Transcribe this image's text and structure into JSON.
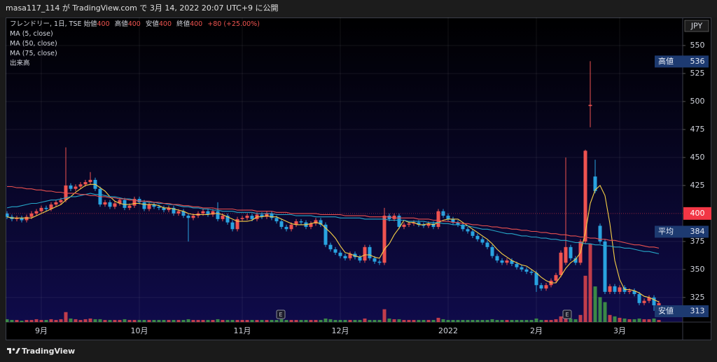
{
  "header": {
    "text": "masa117_114 が TradingView.com で 3月 14, 2022 20:07 UTC+9 に公開"
  },
  "chart_data": {
    "type": "candlestick",
    "legend": {
      "symbol": "フレンドリー, 1日, TSE",
      "ohlc_labels": [
        "始値",
        "高値",
        "安値",
        "終値"
      ],
      "ohlc_values": [
        400,
        400,
        400,
        400
      ],
      "change": "+80 (+25.00%)"
    },
    "volume_name": "出来高",
    "currency": "JPY",
    "categories": [
      null,
      null,
      null,
      null,
      null,
      null,
      null,
      "9月",
      null,
      null,
      null,
      null,
      null,
      null,
      null,
      null,
      null,
      null,
      null,
      null,
      null,
      null,
      null,
      null,
      null,
      null,
      null,
      "10月",
      null,
      null,
      null,
      null,
      null,
      null,
      null,
      null,
      null,
      null,
      null,
      null,
      null,
      null,
      null,
      null,
      null,
      null,
      null,
      null,
      "11月",
      null,
      null,
      null,
      null,
      null,
      null,
      null,
      null,
      null,
      null,
      null,
      null,
      null,
      null,
      null,
      null,
      null,
      null,
      null,
      "12月",
      null,
      null,
      null,
      null,
      null,
      null,
      null,
      null,
      null,
      null,
      null,
      null,
      null,
      null,
      null,
      null,
      null,
      null,
      null,
      null,
      null,
      "2022",
      null,
      null,
      null,
      null,
      null,
      null,
      null,
      null,
      null,
      null,
      null,
      null,
      null,
      null,
      null,
      null,
      null,
      "2月",
      null,
      null,
      null,
      null,
      null,
      null,
      null,
      null,
      null,
      null,
      null,
      null,
      null,
      null,
      null,
      null,
      "3月",
      null,
      null,
      null,
      null,
      null,
      null,
      null,
      null
    ],
    "open": [
      400,
      397,
      395,
      396,
      394,
      397,
      400,
      402,
      405,
      404,
      408,
      410,
      412,
      425,
      422,
      424,
      426,
      428,
      430,
      422,
      408,
      410,
      406,
      409,
      412,
      405,
      407,
      413,
      410,
      404,
      408,
      406,
      405,
      403,
      405,
      400,
      402,
      398,
      396,
      398,
      400,
      402,
      399,
      402,
      395,
      398,
      392,
      386,
      395,
      396,
      398,
      395,
      399,
      397,
      400,
      396,
      393,
      388,
      386,
      390,
      393,
      392,
      388,
      391,
      394,
      390,
      372,
      368,
      365,
      362,
      360,
      364,
      361,
      358,
      370,
      360,
      357,
      356,
      398,
      395,
      398,
      388,
      390,
      391,
      392,
      390,
      389,
      391,
      388,
      402,
      398,
      395,
      392,
      390,
      386,
      384,
      380,
      377,
      374,
      370,
      362,
      358,
      356,
      358,
      355,
      352,
      350,
      348,
      347,
      336,
      333,
      336,
      340,
      345,
      356,
      370,
      360,
      356,
      375,
      496,
      433,
      389,
      375,
      330,
      335,
      330,
      334,
      330,
      331,
      328,
      320,
      322,
      325,
      318
    ],
    "high": [
      402,
      399,
      398,
      398,
      399,
      402,
      404,
      407,
      407,
      410,
      412,
      414,
      459,
      427,
      426,
      428,
      430,
      437,
      432,
      424,
      412,
      412,
      411,
      414,
      414,
      409,
      415,
      415,
      412,
      410,
      410,
      408,
      407,
      407,
      407,
      404,
      404,
      400,
      400,
      402,
      404,
      404,
      404,
      410,
      400,
      400,
      394,
      397,
      398,
      400,
      400,
      401,
      401,
      402,
      402,
      398,
      395,
      390,
      392,
      395,
      395,
      394,
      393,
      396,
      396,
      392,
      374,
      370,
      367,
      364,
      366,
      366,
      363,
      372,
      372,
      362,
      359,
      405,
      400,
      400,
      400,
      392,
      393,
      394,
      394,
      392,
      393,
      393,
      404,
      404,
      400,
      397,
      394,
      392,
      388,
      386,
      382,
      379,
      376,
      372,
      364,
      360,
      360,
      360,
      357,
      354,
      352,
      350,
      349,
      338,
      338,
      342,
      347,
      367,
      450,
      372,
      362,
      377,
      457,
      536,
      448,
      391,
      377,
      337,
      337,
      336,
      336,
      333,
      333,
      330,
      324,
      327,
      327,
      322
    ],
    "low": [
      395,
      393,
      393,
      392,
      392,
      395,
      398,
      400,
      402,
      402,
      406,
      408,
      410,
      420,
      420,
      422,
      424,
      426,
      420,
      406,
      406,
      404,
      404,
      407,
      403,
      403,
      405,
      408,
      402,
      402,
      404,
      403,
      401,
      401,
      398,
      398,
      396,
      375,
      394,
      396,
      398,
      397,
      397,
      393,
      393,
      390,
      384,
      384,
      393,
      394,
      393,
      393,
      395,
      395,
      394,
      391,
      386,
      384,
      384,
      388,
      390,
      386,
      386,
      389,
      388,
      370,
      366,
      363,
      360,
      358,
      358,
      359,
      356,
      356,
      358,
      355,
      354,
      354,
      393,
      393,
      386,
      386,
      388,
      389,
      388,
      387,
      387,
      386,
      386,
      396,
      393,
      390,
      388,
      384,
      382,
      378,
      375,
      372,
      368,
      360,
      356,
      354,
      354,
      353,
      350,
      348,
      346,
      345,
      330,
      331,
      331,
      334,
      338,
      343,
      354,
      358,
      354,
      354,
      373,
      477,
      418,
      373,
      328,
      328,
      328,
      328,
      328,
      328,
      326,
      318,
      318,
      320,
      313,
      316
    ],
    "close": [
      397,
      395,
      396,
      394,
      397,
      400,
      402,
      405,
      404,
      408,
      410,
      412,
      425,
      422,
      424,
      426,
      428,
      430,
      422,
      408,
      410,
      406,
      409,
      412,
      405,
      407,
      413,
      410,
      404,
      408,
      406,
      405,
      403,
      405,
      400,
      402,
      398,
      396,
      398,
      400,
      402,
      399,
      402,
      395,
      398,
      392,
      386,
      395,
      396,
      398,
      395,
      399,
      397,
      400,
      396,
      393,
      388,
      386,
      390,
      393,
      392,
      388,
      391,
      394,
      390,
      372,
      368,
      365,
      362,
      360,
      364,
      361,
      358,
      370,
      360,
      357,
      356,
      398,
      395,
      398,
      388,
      390,
      391,
      392,
      390,
      389,
      391,
      388,
      402,
      398,
      395,
      392,
      390,
      386,
      384,
      380,
      377,
      374,
      370,
      362,
      358,
      356,
      358,
      355,
      352,
      350,
      348,
      347,
      336,
      333,
      336,
      340,
      345,
      365,
      370,
      360,
      356,
      375,
      456,
      497,
      420,
      375,
      330,
      335,
      330,
      334,
      330,
      331,
      328,
      320,
      322,
      325,
      318,
      320
    ],
    "volume": [
      4,
      3,
      3,
      2,
      3,
      3,
      4,
      3,
      3,
      4,
      3,
      4,
      14,
      5,
      4,
      3,
      4,
      5,
      4,
      4,
      3,
      3,
      3,
      3,
      4,
      3,
      3,
      3,
      3,
      3,
      3,
      3,
      3,
      3,
      3,
      3,
      3,
      4,
      3,
      3,
      3,
      3,
      3,
      4,
      3,
      3,
      3,
      3,
      3,
      3,
      3,
      3,
      3,
      3,
      3,
      3,
      4,
      3,
      3,
      3,
      3,
      3,
      3,
      3,
      3,
      5,
      4,
      3,
      3,
      3,
      3,
      3,
      3,
      5,
      3,
      3,
      3,
      18,
      5,
      4,
      4,
      3,
      3,
      3,
      3,
      3,
      3,
      3,
      6,
      4,
      3,
      3,
      3,
      3,
      3,
      3,
      3,
      3,
      3,
      4,
      3,
      3,
      3,
      3,
      3,
      3,
      3,
      3,
      5,
      3,
      3,
      3,
      4,
      8,
      10,
      5,
      4,
      10,
      65,
      110,
      50,
      35,
      28,
      10,
      8,
      6,
      5,
      4,
      4,
      5,
      4,
      4,
      5,
      3
    ],
    "up_color": "#ef5350",
    "down_color": "#29a3e0",
    "volume_up_color": "#e0464c",
    "volume_down_color": "#43a047",
    "series": [
      {
        "name": "MA (5, close)",
        "color": "#f7d046",
        "values": [
          397,
          396,
          396,
          396,
          396,
          396,
          398,
          400,
          402,
          404,
          406,
          408,
          412,
          415,
          419,
          422,
          425,
          426,
          426,
          423,
          420,
          415,
          411,
          409,
          408,
          408,
          409,
          409,
          408,
          408,
          408,
          407,
          405,
          405,
          404,
          403,
          402,
          400,
          399,
          399,
          399,
          399,
          400,
          400,
          399,
          397,
          395,
          393,
          393,
          393,
          394,
          397,
          397,
          398,
          397,
          397,
          395,
          393,
          391,
          390,
          390,
          390,
          391,
          392,
          391,
          387,
          383,
          378,
          371,
          365,
          364,
          362,
          361,
          363,
          363,
          361,
          360,
          368,
          373,
          381,
          387,
          394,
          392,
          392,
          390,
          390,
          391,
          390,
          392,
          394,
          395,
          395,
          395,
          392,
          389,
          386,
          383,
          380,
          377,
          373,
          368,
          364,
          361,
          358,
          356,
          354,
          353,
          350,
          347,
          343,
          340,
          338,
          338,
          344,
          351,
          356,
          359,
          365,
          383,
          409,
          421,
          425,
          416,
          391,
          358,
          341,
          332,
          332,
          331,
          329,
          326,
          325,
          323,
          321
        ]
      },
      {
        "name": "MA (50, close)",
        "color": "#26a7c9",
        "values": [
          405,
          406,
          406,
          407,
          408,
          409,
          409,
          410,
          411,
          412,
          412,
          413,
          414,
          415,
          415,
          416,
          417,
          418,
          417,
          417,
          416,
          415,
          415,
          414,
          413,
          413,
          412,
          411,
          411,
          410,
          410,
          409,
          409,
          408,
          408,
          407,
          406,
          406,
          405,
          405,
          404,
          404,
          403,
          403,
          402,
          402,
          402,
          401,
          401,
          401,
          401,
          400,
          400,
          400,
          400,
          399,
          399,
          399,
          399,
          398,
          398,
          398,
          398,
          397,
          397,
          397,
          397,
          397,
          396,
          396,
          396,
          396,
          396,
          395,
          395,
          395,
          395,
          395,
          394,
          394,
          394,
          394,
          393,
          393,
          393,
          393,
          392,
          392,
          392,
          391,
          391,
          390,
          390,
          389,
          389,
          388,
          387,
          386,
          386,
          385,
          384,
          383,
          382,
          382,
          381,
          380,
          380,
          379,
          379,
          378,
          378,
          377,
          377,
          376,
          376,
          375,
          374,
          374,
          373,
          373,
          372,
          372,
          371,
          371,
          370,
          370,
          369,
          369,
          368,
          367,
          366,
          366,
          365,
          364
        ]
      },
      {
        "name": "MA (75, close)",
        "color": "#e8504f",
        "values": [
          424,
          424,
          423,
          423,
          422,
          422,
          421,
          421,
          420,
          420,
          419,
          419,
          418,
          418,
          418,
          417,
          417,
          416,
          416,
          415,
          415,
          414,
          414,
          413,
          413,
          412,
          412,
          411,
          411,
          411,
          410,
          410,
          409,
          409,
          408,
          408,
          407,
          407,
          406,
          406,
          405,
          405,
          405,
          404,
          404,
          404,
          404,
          403,
          403,
          403,
          403,
          402,
          402,
          402,
          402,
          401,
          401,
          401,
          400,
          400,
          400,
          400,
          400,
          400,
          399,
          399,
          399,
          399,
          399,
          398,
          398,
          398,
          398,
          398,
          397,
          397,
          397,
          397,
          397,
          396,
          396,
          396,
          396,
          396,
          395,
          395,
          395,
          394,
          394,
          393,
          393,
          392,
          392,
          391,
          391,
          390,
          390,
          389,
          389,
          388,
          388,
          387,
          387,
          386,
          386,
          385,
          385,
          384,
          384,
          383,
          383,
          382,
          382,
          381,
          381,
          380,
          380,
          379,
          379,
          378,
          378,
          377,
          377,
          376,
          376,
          375,
          374,
          373,
          372,
          372,
          371,
          370,
          370,
          369
        ]
      }
    ],
    "ylim": [
      303,
      575
    ],
    "yticks": [
      325,
      350,
      375,
      425,
      450,
      475,
      500,
      525,
      550
    ],
    "grid": true,
    "price_labels": [
      {
        "label": "高値",
        "value": 536
      },
      {
        "label": "平均",
        "value": 384
      },
      {
        "label": "安値",
        "value": 313
      }
    ],
    "price_label_color": "#1d3a70",
    "last_price": 400,
    "last_price_color": "#f23645",
    "earnings_markers": [
      "E",
      "E"
    ]
  },
  "footer": {
    "brand": "TradingView"
  }
}
